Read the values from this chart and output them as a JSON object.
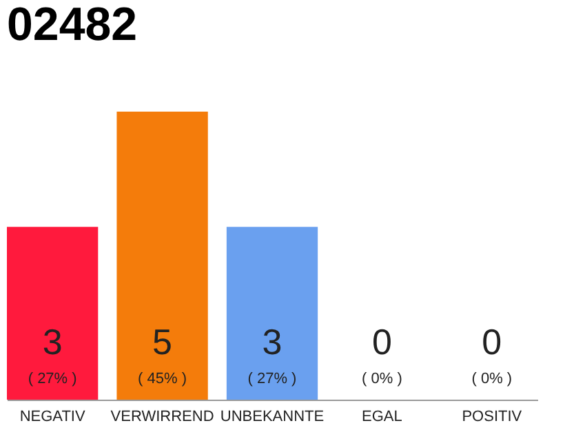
{
  "chart_data": {
    "type": "bar",
    "title": "02482",
    "categories": [
      "NEGATIV",
      "VERWIRREND",
      "UNBEKANNTE",
      "EGAL",
      "POSITIV"
    ],
    "values": [
      27,
      45,
      27,
      0,
      0
    ],
    "value_labels": [
      "( 27% )",
      "( 45% )",
      "( 27% )",
      "( 0% )",
      "( 0% )"
    ],
    "colors": [
      "#ff1a3d",
      "#f47c0b",
      "#6aa0ef",
      "#ff1a3d",
      "#ff1a3d"
    ],
    "grid": false,
    "tick_labels": "x",
    "annotations": [
      "3",
      "5",
      "3",
      "0",
      "0"
    ]
  }
}
